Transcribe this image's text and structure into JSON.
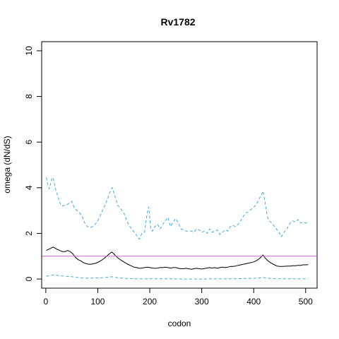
{
  "chart_data": {
    "type": "line",
    "title": "Rv1782",
    "xlabel": "codon",
    "ylabel": "omega (dN/dS)",
    "xlim": [
      -8,
      522
    ],
    "ylim": [
      -0.4,
      10.4
    ],
    "x_ticks": [
      "0",
      "100",
      "200",
      "300",
      "400",
      "500"
    ],
    "y_ticks": [
      "0",
      "2",
      "4",
      "6",
      "8",
      "10"
    ],
    "grid": false,
    "legend": "none",
    "reference_line": {
      "y": 1.0,
      "color": "#cc66cc"
    },
    "series": [
      {
        "style": "dashed",
        "color": "#3fa9e0",
        "points": [
          [
            1,
            4.45
          ],
          [
            4,
            4.1
          ],
          [
            7,
            3.95
          ],
          [
            10,
            4.3
          ],
          [
            14,
            4.45
          ],
          [
            18,
            4.0
          ],
          [
            22,
            3.7
          ],
          [
            26,
            3.4
          ],
          [
            30,
            3.2
          ],
          [
            40,
            3.25
          ],
          [
            50,
            3.4
          ],
          [
            55,
            3.1
          ],
          [
            60,
            3.0
          ],
          [
            65,
            2.9
          ],
          [
            70,
            2.75
          ],
          [
            75,
            2.45
          ],
          [
            80,
            2.3
          ],
          [
            85,
            2.25
          ],
          [
            90,
            2.3
          ],
          [
            95,
            2.4
          ],
          [
            100,
            2.55
          ],
          [
            105,
            2.8
          ],
          [
            110,
            3.05
          ],
          [
            115,
            3.3
          ],
          [
            120,
            3.6
          ],
          [
            125,
            3.9
          ],
          [
            128,
            4.0
          ],
          [
            132,
            3.7
          ],
          [
            138,
            3.25
          ],
          [
            145,
            3.05
          ],
          [
            150,
            2.9
          ],
          [
            155,
            2.6
          ],
          [
            160,
            2.35
          ],
          [
            165,
            2.2
          ],
          [
            170,
            2.05
          ],
          [
            175,
            1.9
          ],
          [
            180,
            1.75
          ],
          [
            185,
            2.0
          ],
          [
            190,
            2.05
          ],
          [
            195,
            2.9
          ],
          [
            198,
            3.15
          ],
          [
            202,
            2.2
          ],
          [
            205,
            2.1
          ],
          [
            210,
            2.3
          ],
          [
            215,
            2.4
          ],
          [
            220,
            2.2
          ],
          [
            225,
            2.4
          ],
          [
            230,
            2.55
          ],
          [
            235,
            2.7
          ],
          [
            240,
            2.3
          ],
          [
            245,
            2.5
          ],
          [
            250,
            2.65
          ],
          [
            255,
            2.45
          ],
          [
            260,
            2.2
          ],
          [
            265,
            2.15
          ],
          [
            270,
            2.1
          ],
          [
            275,
            2.1
          ],
          [
            280,
            2.1
          ],
          [
            285,
            2.05
          ],
          [
            290,
            2.2
          ],
          [
            295,
            2.15
          ],
          [
            300,
            2.05
          ],
          [
            305,
            2.1
          ],
          [
            310,
            2.0
          ],
          [
            315,
            2.2
          ],
          [
            320,
            2.05
          ],
          [
            325,
            2.1
          ],
          [
            330,
            2.15
          ],
          [
            335,
            1.95
          ],
          [
            340,
            2.05
          ],
          [
            345,
            2.15
          ],
          [
            350,
            2.1
          ],
          [
            355,
            2.3
          ],
          [
            360,
            2.35
          ],
          [
            365,
            2.3
          ],
          [
            370,
            2.4
          ],
          [
            375,
            2.55
          ],
          [
            380,
            2.75
          ],
          [
            385,
            2.9
          ],
          [
            390,
            2.95
          ],
          [
            395,
            3.05
          ],
          [
            400,
            3.15
          ],
          [
            405,
            3.25
          ],
          [
            410,
            3.5
          ],
          [
            415,
            3.7
          ],
          [
            418,
            3.85
          ],
          [
            422,
            3.35
          ],
          [
            426,
            2.75
          ],
          [
            430,
            2.55
          ],
          [
            435,
            2.45
          ],
          [
            440,
            2.3
          ],
          [
            445,
            2.15
          ],
          [
            450,
            2.0
          ],
          [
            453,
            1.85
          ],
          [
            456,
            1.95
          ],
          [
            460,
            2.1
          ],
          [
            465,
            2.25
          ],
          [
            470,
            2.45
          ],
          [
            475,
            2.55
          ],
          [
            480,
            2.5
          ],
          [
            485,
            2.6
          ],
          [
            490,
            2.45
          ],
          [
            495,
            2.5
          ],
          [
            500,
            2.45
          ],
          [
            505,
            2.5
          ]
        ]
      },
      {
        "style": "solid",
        "color": "#000000",
        "points": [
          [
            1,
            1.25
          ],
          [
            5,
            1.3
          ],
          [
            10,
            1.35
          ],
          [
            14,
            1.4
          ],
          [
            18,
            1.35
          ],
          [
            22,
            1.3
          ],
          [
            27,
            1.25
          ],
          [
            32,
            1.2
          ],
          [
            37,
            1.2
          ],
          [
            42,
            1.25
          ],
          [
            47,
            1.2
          ],
          [
            52,
            1.1
          ],
          [
            57,
            0.95
          ],
          [
            62,
            0.85
          ],
          [
            67,
            0.8
          ],
          [
            72,
            0.72
          ],
          [
            77,
            0.68
          ],
          [
            82,
            0.65
          ],
          [
            87,
            0.65
          ],
          [
            92,
            0.67
          ],
          [
            97,
            0.7
          ],
          [
            102,
            0.75
          ],
          [
            107,
            0.82
          ],
          [
            112,
            0.9
          ],
          [
            117,
            1.0
          ],
          [
            122,
            1.1
          ],
          [
            127,
            1.18
          ],
          [
            131,
            1.1
          ],
          [
            135,
            1.0
          ],
          [
            140,
            0.9
          ],
          [
            145,
            0.82
          ],
          [
            150,
            0.75
          ],
          [
            155,
            0.68
          ],
          [
            160,
            0.62
          ],
          [
            165,
            0.57
          ],
          [
            170,
            0.52
          ],
          [
            175,
            0.5
          ],
          [
            180,
            0.47
          ],
          [
            185,
            0.48
          ],
          [
            190,
            0.5
          ],
          [
            195,
            0.52
          ],
          [
            200,
            0.5
          ],
          [
            205,
            0.48
          ],
          [
            210,
            0.47
          ],
          [
            215,
            0.48
          ],
          [
            220,
            0.5
          ],
          [
            225,
            0.5
          ],
          [
            230,
            0.52
          ],
          [
            235,
            0.5
          ],
          [
            240,
            0.48
          ],
          [
            245,
            0.5
          ],
          [
            250,
            0.5
          ],
          [
            255,
            0.47
          ],
          [
            260,
            0.45
          ],
          [
            265,
            0.45
          ],
          [
            270,
            0.47
          ],
          [
            275,
            0.45
          ],
          [
            280,
            0.43
          ],
          [
            285,
            0.45
          ],
          [
            290,
            0.47
          ],
          [
            295,
            0.45
          ],
          [
            300,
            0.44
          ],
          [
            305,
            0.46
          ],
          [
            310,
            0.48
          ],
          [
            315,
            0.5
          ],
          [
            320,
            0.48
          ],
          [
            325,
            0.5
          ],
          [
            330,
            0.47
          ],
          [
            335,
            0.5
          ],
          [
            340,
            0.52
          ],
          [
            345,
            0.5
          ],
          [
            350,
            0.52
          ],
          [
            355,
            0.55
          ],
          [
            360,
            0.55
          ],
          [
            365,
            0.57
          ],
          [
            370,
            0.6
          ],
          [
            375,
            0.62
          ],
          [
            380,
            0.65
          ],
          [
            385,
            0.67
          ],
          [
            390,
            0.7
          ],
          [
            395,
            0.72
          ],
          [
            400,
            0.75
          ],
          [
            405,
            0.8
          ],
          [
            410,
            0.88
          ],
          [
            415,
            0.98
          ],
          [
            418,
            1.05
          ],
          [
            421,
            0.95
          ],
          [
            425,
            0.85
          ],
          [
            430,
            0.75
          ],
          [
            435,
            0.68
          ],
          [
            440,
            0.62
          ],
          [
            445,
            0.57
          ],
          [
            450,
            0.55
          ],
          [
            455,
            0.55
          ],
          [
            460,
            0.56
          ],
          [
            465,
            0.57
          ],
          [
            470,
            0.57
          ],
          [
            475,
            0.58
          ],
          [
            480,
            0.58
          ],
          [
            485,
            0.6
          ],
          [
            490,
            0.6
          ],
          [
            495,
            0.62
          ],
          [
            500,
            0.62
          ],
          [
            505,
            0.63
          ]
        ]
      },
      {
        "style": "dashed",
        "color": "#3fa9e0",
        "points": [
          [
            1,
            0.12
          ],
          [
            5,
            0.14
          ],
          [
            10,
            0.16
          ],
          [
            15,
            0.18
          ],
          [
            20,
            0.17
          ],
          [
            25,
            0.15
          ],
          [
            30,
            0.14
          ],
          [
            40,
            0.12
          ],
          [
            50,
            0.1
          ],
          [
            60,
            0.07
          ],
          [
            70,
            0.05
          ],
          [
            80,
            0.04
          ],
          [
            90,
            0.04
          ],
          [
            100,
            0.05
          ],
          [
            110,
            0.06
          ],
          [
            120,
            0.08
          ],
          [
            127,
            0.1
          ],
          [
            132,
            0.08
          ],
          [
            140,
            0.05
          ],
          [
            150,
            0.03
          ],
          [
            160,
            0.02
          ],
          [
            170,
            0.01
          ],
          [
            180,
            0.01
          ],
          [
            200,
            0.01
          ],
          [
            220,
            0.01
          ],
          [
            240,
            0.01
          ],
          [
            260,
            0.0
          ],
          [
            280,
            0.0
          ],
          [
            300,
            0.0
          ],
          [
            320,
            0.01
          ],
          [
            340,
            0.01
          ],
          [
            360,
            0.01
          ],
          [
            380,
            0.02
          ],
          [
            400,
            0.03
          ],
          [
            410,
            0.05
          ],
          [
            418,
            0.07
          ],
          [
            425,
            0.04
          ],
          [
            435,
            0.02
          ],
          [
            450,
            0.01
          ],
          [
            470,
            0.01
          ],
          [
            490,
            0.01
          ],
          [
            505,
            0.01
          ]
        ]
      }
    ]
  }
}
